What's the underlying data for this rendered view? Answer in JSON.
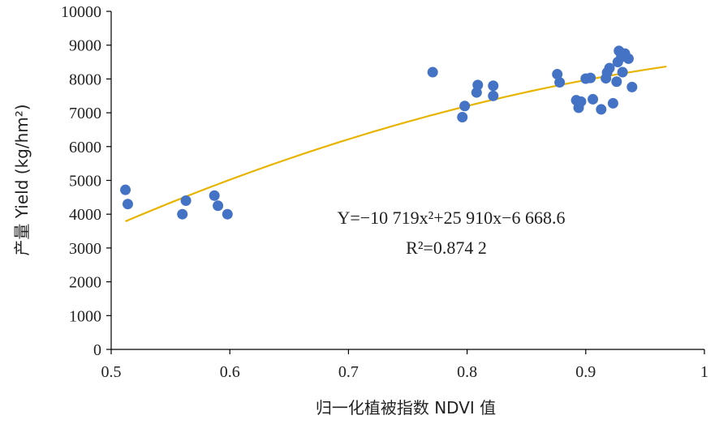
{
  "chart_data": {
    "type": "scatter",
    "xlabel": "归一化植被指数 NDVI 值",
    "ylabel": "产量 Yield (kg/hm²)",
    "xlim": [
      0.5,
      1.0
    ],
    "ylim": [
      0,
      10000
    ],
    "x_ticks": [
      "0.5",
      "0.6",
      "0.7",
      "0.8",
      "0.9",
      "1"
    ],
    "y_ticks": [
      "0",
      "1000",
      "2000",
      "3000",
      "4000",
      "5000",
      "6000",
      "7000",
      "8000",
      "9000",
      "10000"
    ],
    "grid": false,
    "series": [
      {
        "points": [
          [
            0.512,
            4720
          ],
          [
            0.514,
            4300
          ],
          [
            0.56,
            4000
          ],
          [
            0.563,
            4400
          ],
          [
            0.587,
            4550
          ],
          [
            0.59,
            4250
          ],
          [
            0.598,
            4000
          ],
          [
            0.771,
            8200
          ],
          [
            0.796,
            6870
          ],
          [
            0.798,
            7200
          ],
          [
            0.808,
            7600
          ],
          [
            0.809,
            7820
          ],
          [
            0.822,
            7800
          ],
          [
            0.822,
            7500
          ],
          [
            0.876,
            8140
          ],
          [
            0.878,
            7900
          ],
          [
            0.892,
            7370
          ],
          [
            0.894,
            7150
          ],
          [
            0.896,
            7330
          ],
          [
            0.9,
            8010
          ],
          [
            0.904,
            8030
          ],
          [
            0.906,
            7400
          ],
          [
            0.913,
            7100
          ],
          [
            0.917,
            8020
          ],
          [
            0.918,
            8190
          ],
          [
            0.92,
            8320
          ],
          [
            0.923,
            7280
          ],
          [
            0.926,
            7920
          ],
          [
            0.927,
            8500
          ],
          [
            0.928,
            8830
          ],
          [
            0.93,
            8650
          ],
          [
            0.931,
            8200
          ],
          [
            0.933,
            8750
          ],
          [
            0.936,
            8600
          ],
          [
            0.939,
            7760
          ]
        ],
        "color": "#4472C4"
      }
    ],
    "trendline": {
      "coefficients": [
        -10719,
        25910,
        -6668.6
      ],
      "x_range": [
        0.512,
        0.968
      ],
      "color": "#E8B400"
    },
    "annotations": {
      "equation": "Y=−10 719x²+25 910x−6 668.6",
      "r_squared": "R²=0.874 2"
    }
  }
}
